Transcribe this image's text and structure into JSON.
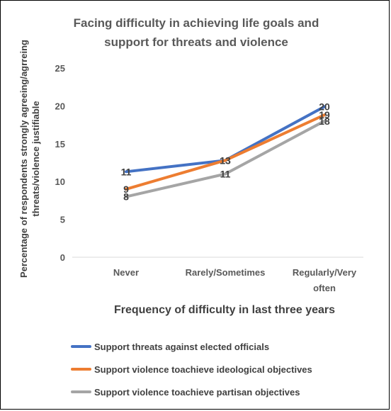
{
  "chart_data": {
    "type": "line",
    "title_lines": [
      "Facing difficulty in achieving life goals and",
      "support for threats and violence"
    ],
    "xlabel": "Frequency of  difficulty in last three years",
    "ylabel_lines": [
      "Percentage of respondents strongly agreeing/agrreing",
      "threats/violence justifiable"
    ],
    "categories": [
      [
        "Never"
      ],
      [
        "Rarely/Sometimes"
      ],
      [
        "Regularly/Very",
        "often"
      ]
    ],
    "ylim": [
      0,
      25
    ],
    "yticks": [
      0,
      5,
      10,
      15,
      20,
      25
    ],
    "grid": false,
    "legend_position": "bottom",
    "series": [
      {
        "name": "Support threats against elected officials",
        "values": [
          11.3,
          12.8,
          19.9
        ],
        "labels": [
          "11",
          "13",
          "20"
        ],
        "color": "#4472C4"
      },
      {
        "name": "Support violence toachieve ideological objectives",
        "values": [
          9.0,
          12.8,
          18.8
        ],
        "labels": [
          "9",
          "13",
          "19"
        ],
        "color": "#ED7D31"
      },
      {
        "name": "Support violence toachieve partisan objectives",
        "values": [
          8.0,
          11.0,
          18.0
        ],
        "labels": [
          "8",
          "11",
          "18"
        ],
        "color": "#A5A5A5"
      }
    ]
  }
}
